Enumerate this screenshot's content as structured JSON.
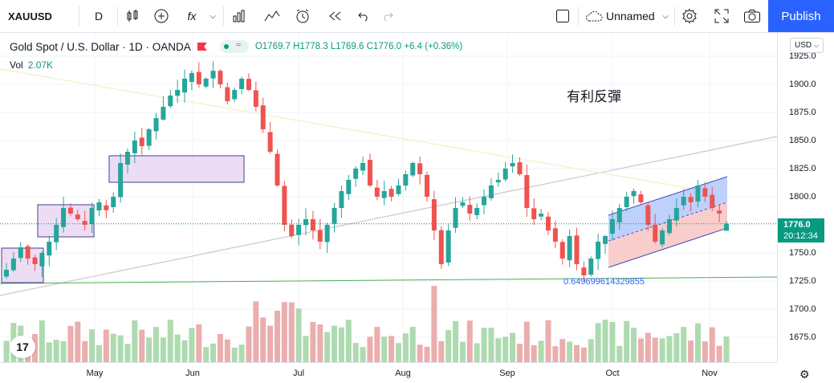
{
  "toolbar": {
    "symbol": "XAUUSD",
    "interval": "D",
    "layout_name": "Unnamed",
    "publish_label": "Publish",
    "fx_label": "fx"
  },
  "legend": {
    "title": "Gold Spot / U.S. Dollar · 1D · OANDA",
    "open": "O1769.7",
    "high": "H1778.3",
    "low": "L1769.6",
    "close": "C1776.0",
    "change": "+6.4 (+0.36%)"
  },
  "volume": {
    "label": "Vol",
    "value": "2.07K"
  },
  "price_axis": {
    "currency": "USD",
    "ticks": [
      "1925.0",
      "1900.0",
      "1875.0",
      "1850.0",
      "1825.0",
      "1800.0",
      "1775.0",
      "1750.0",
      "1725.0",
      "1700.0",
      "1675.0"
    ],
    "last_price": "1776.0",
    "countdown": "20:12:34"
  },
  "annotations": {
    "text": "有利反彈",
    "fib_value": "0.649699614329855"
  },
  "colors": {
    "up": "#26a69a",
    "down": "#ef5350",
    "accent": "#2962ff"
  },
  "chart_data": {
    "type": "candlestick",
    "symbol": "XAUUSD",
    "ylim": [
      1660,
      1935
    ],
    "x_ticks": [
      "May",
      "Jun",
      "Jul",
      "Aug",
      "Sep",
      "Oct",
      "Nov"
    ],
    "y_ticks": [
      1925,
      1900,
      1875,
      1850,
      1825,
      1800,
      1775,
      1750,
      1725,
      1700,
      1675
    ],
    "last": {
      "open": 1769.7,
      "high": 1778.3,
      "low": 1769.6,
      "close": 1776.0,
      "change": 6.4,
      "change_pct": 0.36
    },
    "close_path": [
      1735,
      1745,
      1755,
      1745,
      1740,
      1750,
      1760,
      1775,
      1790,
      1785,
      1780,
      1775,
      1790,
      1795,
      1788,
      1800,
      1830,
      1840,
      1850,
      1845,
      1860,
      1870,
      1880,
      1890,
      1895,
      1905,
      1910,
      1900,
      1905,
      1912,
      1900,
      1885,
      1895,
      1905,
      1895,
      1880,
      1860,
      1840,
      1810,
      1775,
      1765,
      1775,
      1780,
      1770,
      1760,
      1775,
      1790,
      1805,
      1815,
      1825,
      1830,
      1810,
      1800,
      1805,
      1800,
      1810,
      1820,
      1830,
      1820,
      1800,
      1770,
      1740,
      1770,
      1790,
      1795,
      1785,
      1790,
      1800,
      1810,
      1815,
      1825,
      1830,
      1820,
      1790,
      1780,
      1785,
      1770,
      1760,
      1745,
      1765,
      1740,
      1730,
      1745,
      1760,
      1765,
      1780,
      1790,
      1800,
      1805,
      1795,
      1775,
      1760,
      1770,
      1780,
      1790,
      1800,
      1795,
      1810,
      1800,
      1790,
      1785,
      1776
    ]
  }
}
